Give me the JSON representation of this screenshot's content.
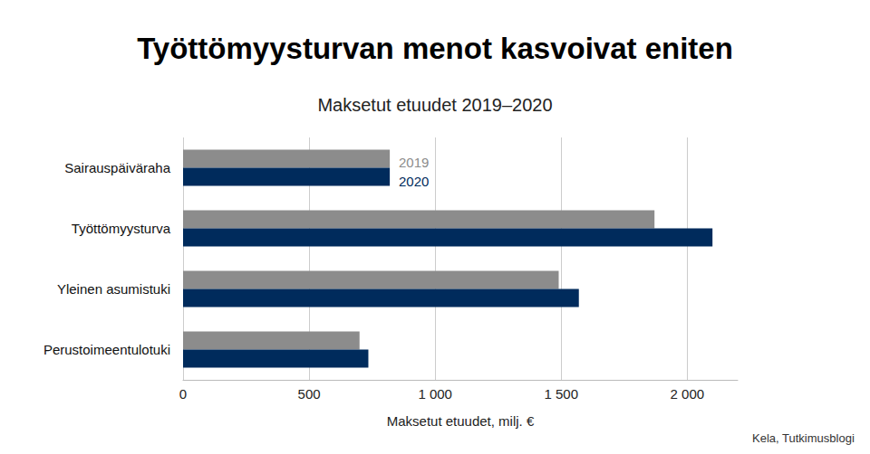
{
  "chart_data": {
    "type": "bar",
    "orientation": "horizontal",
    "title": "Työttömyysturvan menot kasvoivat eniten",
    "subtitle": "Maksetut etuudet 2019–2020",
    "x_label": "Maksetut etuudet, milj. €",
    "source": "Kela, Tutkimusblogi",
    "categories": [
      "Sairauspäiväraha",
      "Työttömyysturva",
      "Yleinen asumistuki",
      "Perustoimeentulotuki"
    ],
    "series": [
      {
        "name": "2019",
        "color": "#8c8c8c",
        "values": [
          820,
          1870,
          1490,
          700
        ]
      },
      {
        "name": "2020",
        "color": "#002b5c",
        "values": [
          820,
          2100,
          1570,
          735
        ]
      }
    ],
    "xlim": [
      0,
      2200
    ],
    "xticks": [
      0,
      500,
      {
        "value": 1000,
        "label": "1 000"
      },
      {
        "value": 1500,
        "label": "1 500"
      },
      {
        "value": 2000,
        "label": "2 000"
      }
    ],
    "grid": true
  }
}
